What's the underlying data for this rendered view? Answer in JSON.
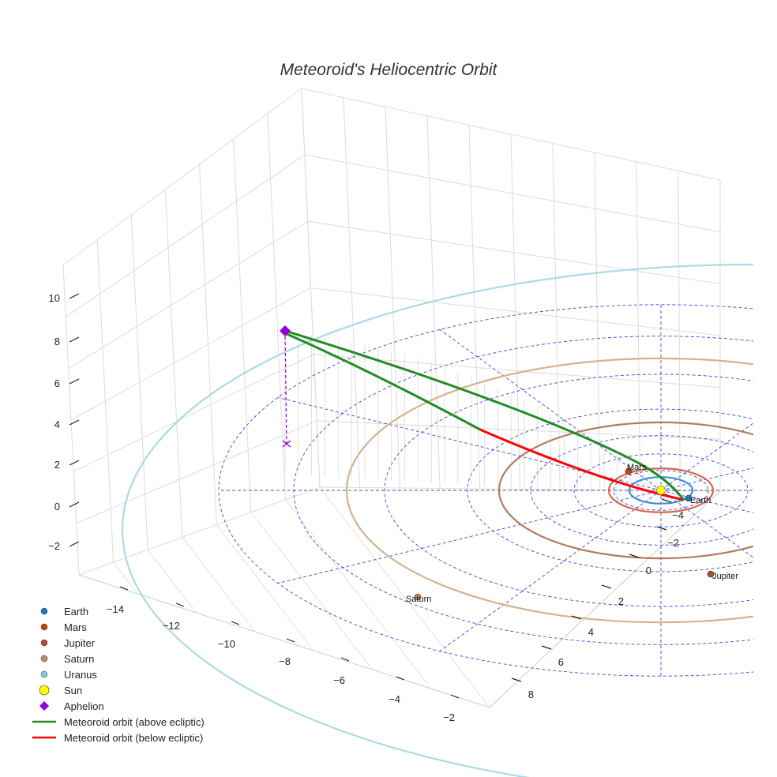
{
  "chart_data": {
    "type": "scatter3d",
    "title": "Meteoroid's Heliocentric Orbit",
    "axes": {
      "x_ticks": [
        -14,
        -12,
        -10,
        -8,
        -6,
        -4,
        -2
      ],
      "y_ticks": [
        -4,
        -2,
        0,
        2,
        4,
        6,
        8
      ],
      "z_ticks": [
        -2,
        0,
        2,
        4,
        6,
        8,
        10
      ]
    },
    "planets": [
      {
        "name": "Earth",
        "color": "#1f77b4",
        "orbit_color": "#3a8fd0",
        "label": "Earth"
      },
      {
        "name": "Mars",
        "color": "#c1440e",
        "orbit_color": "#d9664a",
        "label": "Mars"
      },
      {
        "name": "Jupiter",
        "color": "#a0522d",
        "orbit_color": "#b07a5e",
        "label": "Jupiter"
      },
      {
        "name": "Saturn",
        "color": "#c08b5c",
        "orbit_color": "#d2b48c",
        "label": "Saturn"
      },
      {
        "name": "Uranus",
        "color": "#7ec8e3",
        "orbit_color": "#a8dbe6"
      }
    ],
    "sun": {
      "name": "Sun",
      "color": "#ffff00"
    },
    "aphelion": {
      "name": "Aphelion",
      "color": "#9400d3",
      "z_au": 8.4
    },
    "meteoroid": {
      "above": {
        "name": "Meteoroid orbit (above ecliptic)",
        "color": "#228b22"
      },
      "below": {
        "name": "Meteoroid orbit (below ecliptic)",
        "color": "#ff0000"
      }
    },
    "ecliptic_grid": {
      "color": "#4444dd",
      "style": "dashed"
    },
    "legend": [
      {
        "label": "Earth",
        "kind": "dot",
        "color": "#1f77b4"
      },
      {
        "label": "Mars",
        "kind": "dot",
        "color": "#c1440e"
      },
      {
        "label": "Jupiter",
        "kind": "dot",
        "color": "#a0522d"
      },
      {
        "label": "Saturn",
        "kind": "dot",
        "color": "#c08b5c"
      },
      {
        "label": "Uranus",
        "kind": "dot",
        "color": "#7ec8e3"
      },
      {
        "label": "Sun",
        "kind": "bigdot",
        "color": "#ffff00"
      },
      {
        "label": "Aphelion",
        "kind": "diamond",
        "color": "#9400d3"
      },
      {
        "label": "Meteoroid orbit (above ecliptic)",
        "kind": "line",
        "color": "#228b22"
      },
      {
        "label": "Meteoroid orbit (below ecliptic)",
        "kind": "line",
        "color": "#ff0000"
      }
    ]
  }
}
